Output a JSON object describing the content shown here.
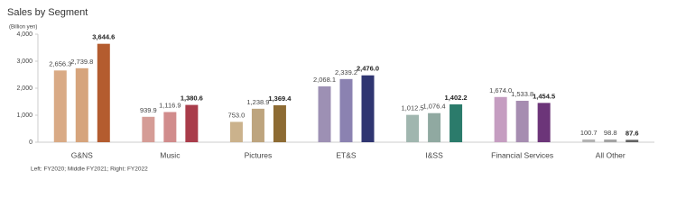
{
  "chart_data": {
    "type": "grouped-bar",
    "title": "Sales by Segment",
    "y_label": "(Billion yen)",
    "footnote": "Left: FY2020; Middle FY2021; Right: FY2022",
    "ylim": [
      0,
      4000
    ],
    "yticks": [
      0,
      {
        "value": 1000,
        "label": "1,000"
      },
      {
        "value": 2000,
        "label": "2,000"
      },
      {
        "value": 3000,
        "label": "3,000"
      },
      {
        "value": 4000,
        "label": "4,000"
      }
    ],
    "grid": false,
    "groups": [
      {
        "name": "G&NS",
        "values": [
          2656.3,
          2739.8,
          3644.6
        ],
        "value_labels": [
          "2,656.3",
          "2,739.8",
          "3,644.6"
        ],
        "colors": [
          "#d9aa85",
          "#d6a47c",
          "#b45c2f"
        ]
      },
      {
        "name": "Music",
        "values": [
          939.9,
          1116.9,
          1380.6
        ],
        "value_labels": [
          "939.9",
          "1,116.9",
          "1,380.6"
        ],
        "colors": [
          "#d59c96",
          "#d18c8c",
          "#a93c4a"
        ]
      },
      {
        "name": "Pictures",
        "values": [
          753.0,
          1238.9,
          1369.4
        ],
        "value_labels": [
          "753.0",
          "1,238.9",
          "1,369.4"
        ],
        "colors": [
          "#cbb28c",
          "#bda47e",
          "#8d6b33"
        ]
      },
      {
        "name": "ET&S",
        "values": [
          2068.1,
          2339.2,
          2476.0
        ],
        "value_labels": [
          "2,068.1",
          "2,339.2",
          "2,476.0"
        ],
        "colors": [
          "#9d90b4",
          "#8b82b1",
          "#2f3571"
        ]
      },
      {
        "name": "I&SS",
        "values": [
          1012.5,
          1076.4,
          1402.2
        ],
        "value_labels": [
          "1,012.5",
          "1,076.4",
          "1,402.2"
        ],
        "colors": [
          "#a0b6af",
          "#90a9a1",
          "#2b7b6b"
        ]
      },
      {
        "name": "Financial Services",
        "values": [
          1674.0,
          1533.8,
          1454.5
        ],
        "value_labels": [
          "1,674.0",
          "1,533.8",
          "1,454.5"
        ],
        "colors": [
          "#c59dc1",
          "#a68db1",
          "#6c3579"
        ]
      },
      {
        "name": "All Other",
        "values": [
          100.7,
          98.8,
          87.6
        ],
        "value_labels": [
          "100.7",
          "98.8",
          "87.6"
        ],
        "colors": [
          "#b3b3b3",
          "#a3a3a3",
          "#626262"
        ]
      }
    ]
  }
}
